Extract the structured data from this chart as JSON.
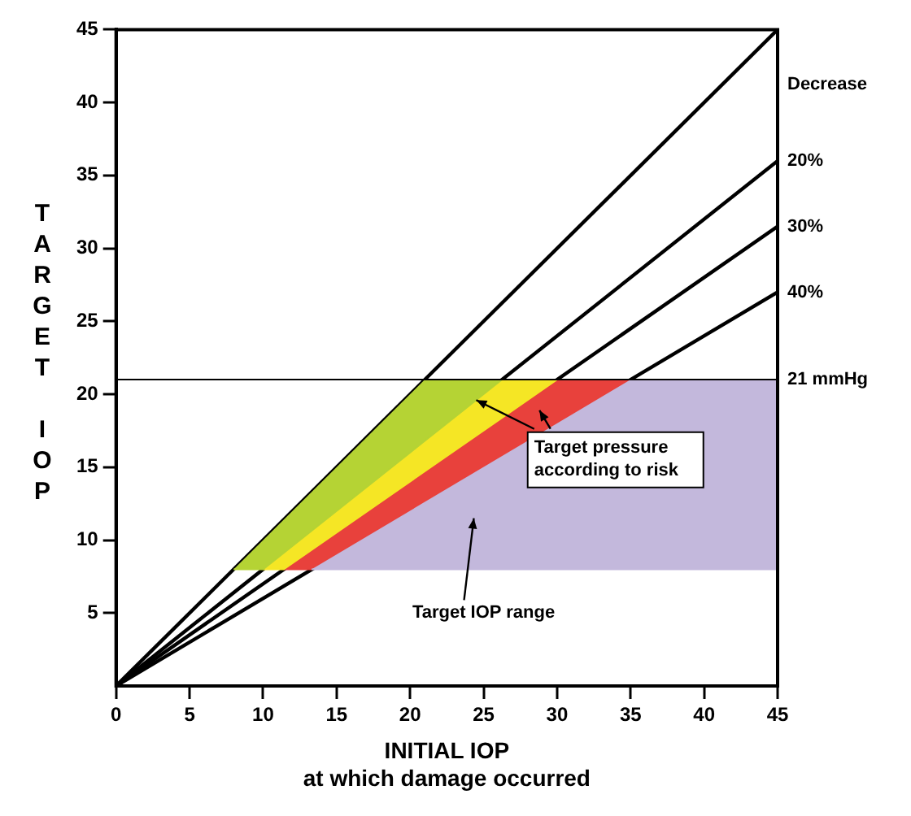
{
  "chart_data": {
    "type": "line",
    "xlabel": "INITIAL IOP\nat which damage occurred",
    "ylabel": "TARGET IOP",
    "legend_title": "Decrease",
    "xlim": [
      0,
      45
    ],
    "ylim": [
      0,
      45
    ],
    "xticks": [
      0,
      5,
      10,
      15,
      20,
      25,
      30,
      35,
      40,
      45
    ],
    "yticks": [
      5,
      10,
      15,
      20,
      25,
      30,
      35,
      40,
      45
    ],
    "grid": false,
    "marker": "none",
    "line_style": "solid",
    "ref_lines": [
      {
        "axis": "y",
        "value": 21,
        "label": "21 mmHg",
        "color": "#000000"
      }
    ],
    "annotations": [
      {
        "text": "Target pressure according to risk",
        "x": 24.5,
        "y": 19.6
      },
      "Target IOP range"
    ],
    "series": [
      {
        "type": "area",
        "color": "#c3b8dc",
        "x": [
          13.3,
          45,
          45,
          35
        ],
        "values": [
          8,
          8,
          21,
          21
        ]
      },
      {
        "type": "area",
        "color": "#b5d334",
        "x": [
          8,
          10,
          26.25,
          21
        ],
        "values": [
          8,
          8,
          21,
          21
        ]
      },
      {
        "type": "area",
        "color": "#f5e625",
        "x": [
          10,
          11.4,
          30,
          26.25
        ],
        "values": [
          8,
          8,
          21,
          21
        ]
      },
      {
        "type": "area",
        "color": "#e8413c",
        "x": [
          11.4,
          13.3,
          35,
          30
        ],
        "values": [
          8,
          8,
          21,
          21
        ]
      },
      {
        "color": "#000000",
        "x": [
          0,
          45
        ],
        "values": [
          0,
          45
        ]
      },
      {
        "name": "20%",
        "color": "#000000",
        "x": [
          0,
          45
        ],
        "values": [
          0,
          36
        ]
      },
      {
        "name": "30%",
        "color": "#000000",
        "x": [
          0,
          45
        ],
        "values": [
          0,
          31.5
        ]
      },
      {
        "name": "40%",
        "color": "#000000",
        "x": [
          0,
          45
        ],
        "values": [
          0,
          27
        ]
      }
    ]
  }
}
